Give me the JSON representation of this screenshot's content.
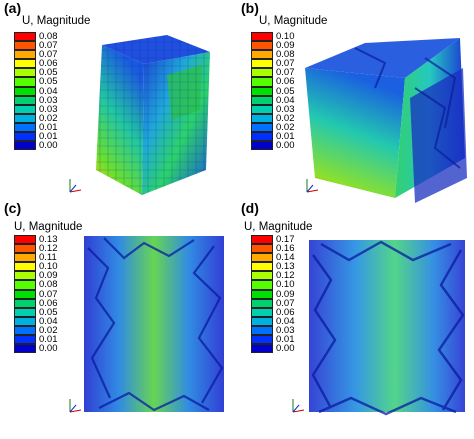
{
  "colors": [
    "#ff0000",
    "#ff5500",
    "#ffaa00",
    "#ffff00",
    "#aaff00",
    "#55ff00",
    "#00e000",
    "#00d070",
    "#00d0b0",
    "#00b0e0",
    "#0070ff",
    "#0030ff",
    "#0000c8"
  ],
  "panels": [
    {
      "label": "(a)",
      "legend_title": "U, Magnitude",
      "values": [
        "0.08",
        "0.07",
        "0.07",
        "0.06",
        "0.05",
        "0.05",
        "0.04",
        "0.03",
        "0.03",
        "0.02",
        "0.01",
        "0.01",
        "0.00"
      ]
    },
    {
      "label": "(b)",
      "legend_title": "U, Magnitude",
      "values": [
        "0.10",
        "0.09",
        "0.08",
        "0.07",
        "0.07",
        "0.06",
        "0.05",
        "0.04",
        "0.03",
        "0.02",
        "0.02",
        "0.01",
        "0.00"
      ]
    },
    {
      "label": "(c)",
      "legend_title": "U, Magnitude",
      "values": [
        "0.13",
        "0.12",
        "0.11",
        "0.10",
        "0.09",
        "0.08",
        "0.07",
        "0.06",
        "0.05",
        "0.04",
        "0.02",
        "0.01",
        "0.00"
      ]
    },
    {
      "label": "(d)",
      "legend_title": "U, Magnitude",
      "values": [
        "0.17",
        "0.16",
        "0.14",
        "0.13",
        "0.12",
        "0.10",
        "0.09",
        "0.07",
        "0.06",
        "0.04",
        "0.03",
        "0.01",
        "0.00"
      ]
    }
  ]
}
